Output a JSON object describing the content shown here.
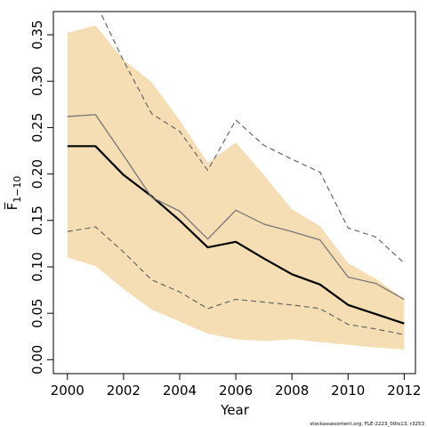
{
  "chart_data": {
    "type": "line",
    "xlabel": "Year",
    "ylabel": "F̅",
    "ylabel_subscript": "1−10",
    "xlim": [
      1999.5,
      2012.4
    ],
    "ylim": [
      -0.015,
      0.375
    ],
    "x_ticks": [
      2000,
      2002,
      2004,
      2006,
      2008,
      2010,
      2012
    ],
    "x_tick_labels": [
      "2000",
      "2002",
      "2004",
      "2006",
      "2008",
      "2010",
      "2012"
    ],
    "y_ticks": [
      0.0,
      0.05,
      0.1,
      0.15,
      0.2,
      0.25,
      0.3,
      0.35
    ],
    "y_tick_labels": [
      "0.00",
      "0.05",
      "0.10",
      "0.15",
      "0.20",
      "0.25",
      "0.30",
      "0.35"
    ],
    "x": [
      2000,
      2001,
      2002,
      2003,
      2004,
      2005,
      2006,
      2007,
      2008,
      2009,
      2010,
      2011,
      2012
    ],
    "band": {
      "color": "#f5deb3",
      "lower": [
        0.11,
        0.101,
        0.076,
        0.054,
        0.041,
        0.028,
        0.022,
        0.02,
        0.022,
        0.019,
        0.016,
        0.013,
        0.011
      ],
      "upper": [
        0.352,
        0.36,
        0.323,
        0.299,
        0.258,
        0.212,
        0.234,
        0.199,
        0.162,
        0.144,
        0.104,
        0.087,
        0.065
      ]
    },
    "series": [
      {
        "style": "solid-thick",
        "color": "#000000",
        "values": [
          0.23,
          0.23,
          0.199,
          0.176,
          0.15,
          0.121,
          0.127,
          0.109,
          0.092,
          0.081,
          0.059,
          0.049,
          0.039
        ]
      },
      {
        "style": "solid-thin",
        "color": "#777777",
        "values": [
          0.262,
          0.264,
          0.22,
          0.175,
          0.16,
          0.13,
          0.161,
          0.146,
          0.138,
          0.129,
          0.089,
          0.082,
          0.065
        ]
      },
      {
        "style": "dashed",
        "color": "#666666",
        "values": [
          0.397,
          0.385,
          0.322,
          0.265,
          0.246,
          0.204,
          0.258,
          0.231,
          0.216,
          0.202,
          0.142,
          0.132,
          0.104
        ]
      },
      {
        "style": "dashed",
        "color": "#666666",
        "values": [
          0.138,
          0.143,
          0.116,
          0.086,
          0.073,
          0.055,
          0.065,
          0.062,
          0.059,
          0.055,
          0.038,
          0.033,
          0.027
        ]
      }
    ],
    "grid": false,
    "legend": "none"
  },
  "footer": "stockassessment.org, FLE-2223_00ts13, r3253"
}
